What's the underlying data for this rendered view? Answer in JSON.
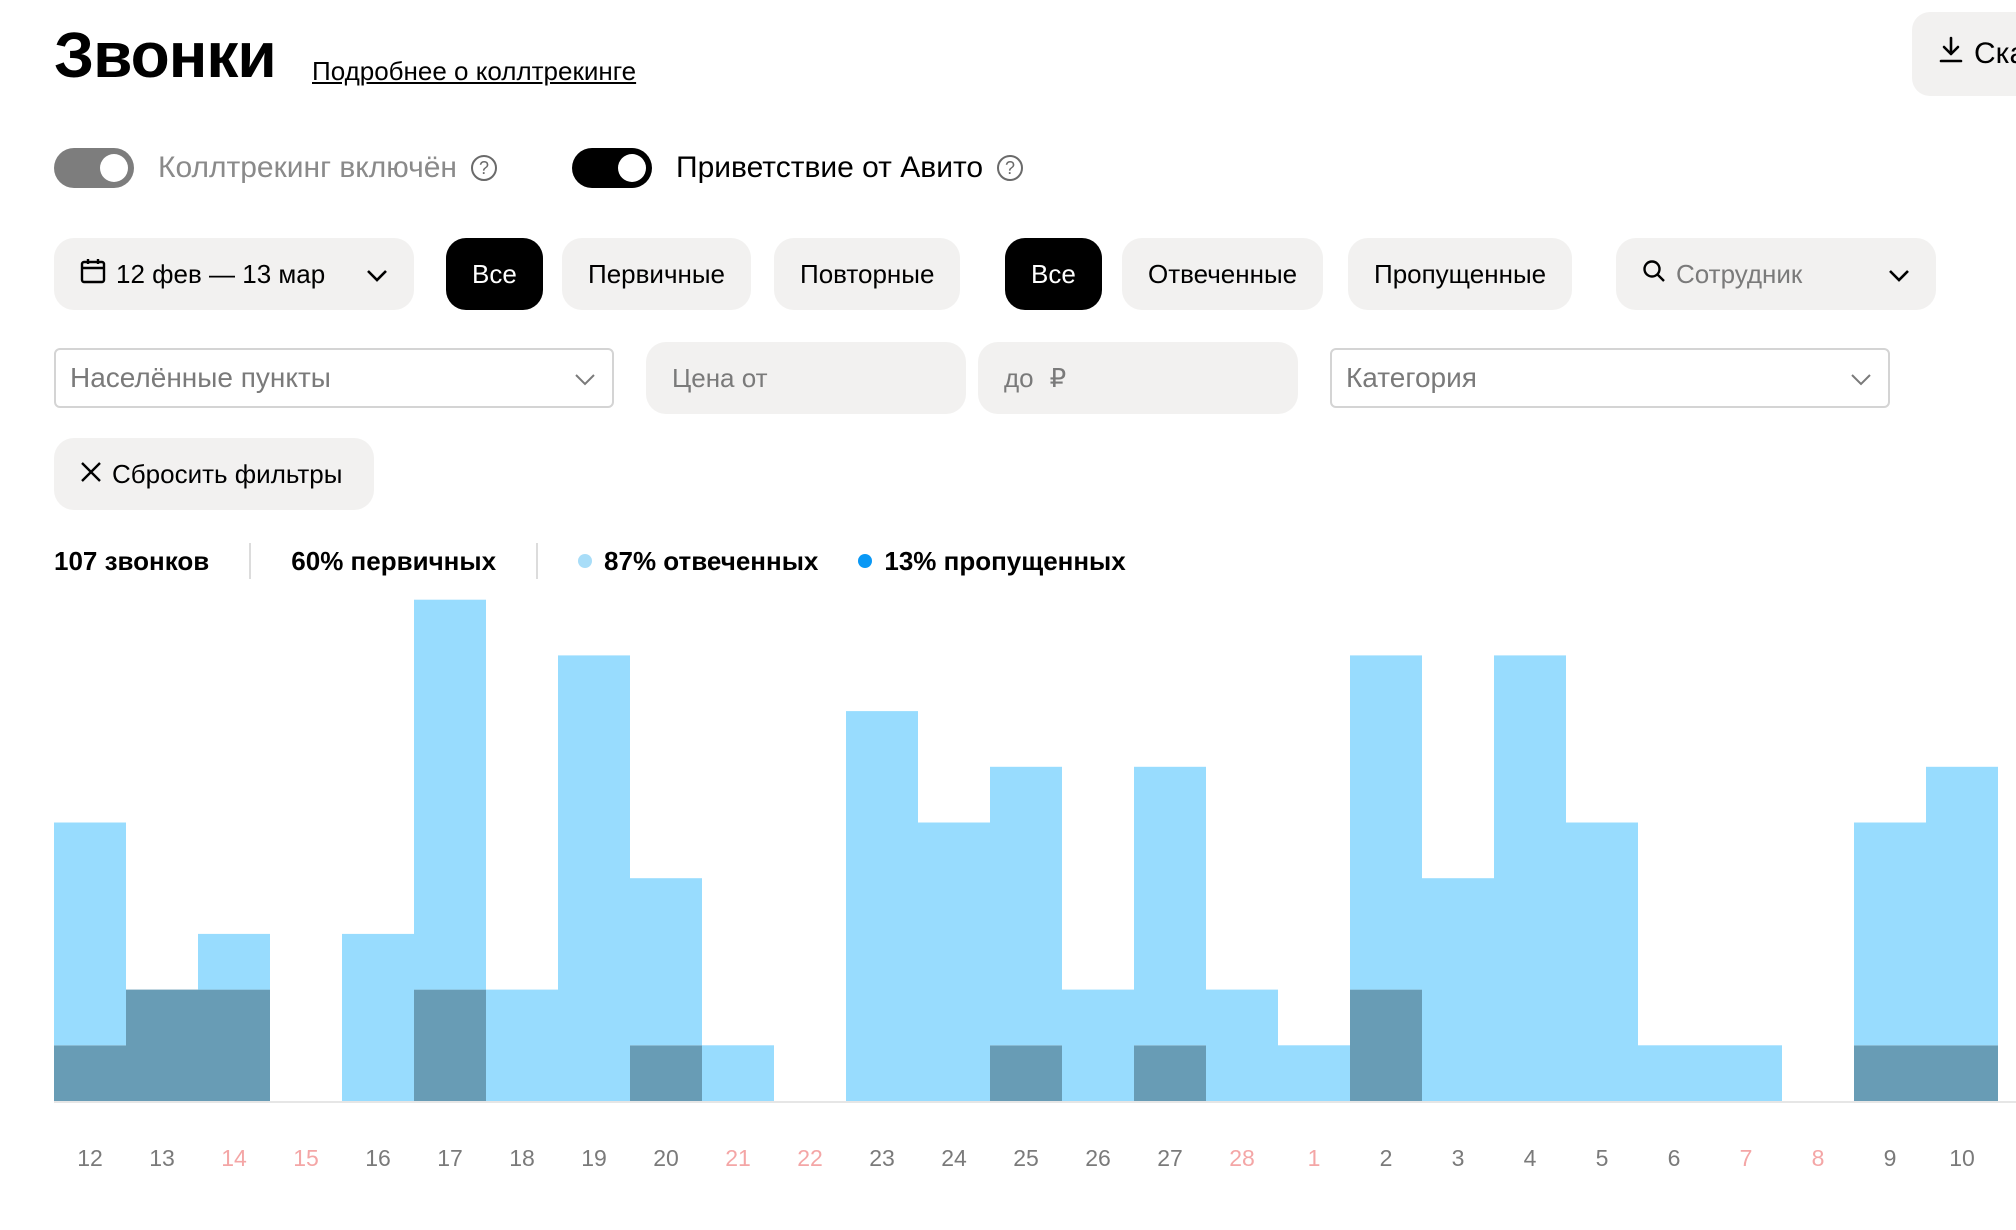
{
  "header": {
    "title": "Звонки",
    "link": "Подробнее о коллтрекинге",
    "download_label": "Ска"
  },
  "toggles": {
    "calltracking": {
      "label": "Коллтрекинг включён",
      "on": true,
      "disabled": true
    },
    "greeting": {
      "label": "Приветствие от Авито",
      "on": true,
      "disabled": false
    },
    "help_glyph": "?"
  },
  "filters": {
    "date_range": "12 фев — 13 мар",
    "call_type": [
      "Все",
      "Первичные",
      "Повторные"
    ],
    "call_type_selected": "Все",
    "call_status": [
      "Все",
      "Отвеченные",
      "Пропущенные"
    ],
    "call_status_selected": "Все",
    "employee_placeholder": "Сотрудник",
    "cities_placeholder": "Населённые пункты",
    "price_from_placeholder": "Цена от",
    "price_to_placeholder": "до",
    "currency": "₽",
    "category_placeholder": "Категория",
    "reset_label": "Сбросить фильтры"
  },
  "stats": {
    "total": "107 звонков",
    "primary": "60% первичных",
    "answered": "87% отвеченных",
    "missed": "13% пропущенных"
  },
  "colors": {
    "answered": "#98dcfe",
    "missed": "#689cb5",
    "answered_dot": "#a8ddf8",
    "missed_dot": "#0a98f5",
    "weekend_label": "#f4a6a6",
    "weekday_label": "#7a7a7a"
  },
  "chart_data": {
    "type": "bar",
    "stacked": true,
    "categories": [
      "12",
      "13",
      "14",
      "15",
      "16",
      "17",
      "18",
      "19",
      "20",
      "21",
      "22",
      "23",
      "24",
      "25",
      "26",
      "27",
      "28",
      "1",
      "2",
      "3",
      "4",
      "5",
      "6",
      "7",
      "8",
      "9",
      "10"
    ],
    "weekend": [
      false,
      false,
      true,
      true,
      false,
      false,
      false,
      false,
      false,
      true,
      true,
      false,
      false,
      false,
      false,
      false,
      true,
      true,
      false,
      false,
      false,
      false,
      false,
      true,
      true,
      false,
      false
    ],
    "series": [
      {
        "name": "пропущенных",
        "values": [
          1,
          2,
          2,
          0,
          0,
          2,
          0,
          0,
          1,
          0,
          0,
          0,
          0,
          1,
          0,
          1,
          0,
          0,
          2,
          0,
          0,
          0,
          0,
          0,
          0,
          1,
          1
        ]
      },
      {
        "name": "отвеченных",
        "values": [
          4,
          0,
          1,
          0,
          3,
          7,
          2,
          8,
          3,
          1,
          0,
          7,
          5,
          5,
          2,
          5,
          2,
          1,
          6,
          4,
          8,
          5,
          1,
          1,
          0,
          4,
          5
        ]
      }
    ],
    "ylim": [
      0,
      9
    ]
  }
}
